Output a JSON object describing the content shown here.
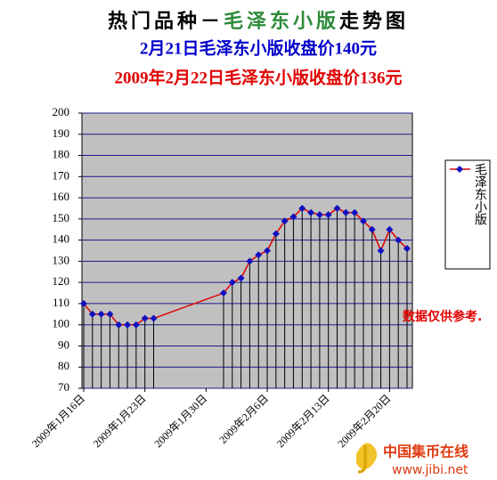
{
  "chart_data": {
    "type": "line",
    "title_parts": [
      {
        "text": "热门品种",
        "color": "#000000"
      },
      {
        "text": "－",
        "color": "#000000"
      },
      {
        "text": "毛泽东小版",
        "color": "#2e8b3a"
      },
      {
        "text": "走势图",
        "color": "#000000"
      }
    ],
    "subtitles": [
      {
        "text": "2月21日毛泽东小版收盘价140元",
        "color": "#0000cc"
      },
      {
        "text": "2009年2月22日毛泽东小版收盘价136元",
        "color": "#e00000"
      }
    ],
    "x": [
      "2009-01-16",
      "2009-01-17",
      "2009-01-18",
      "2009-01-19",
      "2009-01-20",
      "2009-01-21",
      "2009-01-22",
      "2009-01-23",
      "2009-01-24",
      "2009-02-01",
      "2009-02-02",
      "2009-02-03",
      "2009-02-04",
      "2009-02-05",
      "2009-02-06",
      "2009-02-07",
      "2009-02-08",
      "2009-02-09",
      "2009-02-10",
      "2009-02-11",
      "2009-02-12",
      "2009-02-13",
      "2009-02-14",
      "2009-02-15",
      "2009-02-16",
      "2009-02-17",
      "2009-02-18",
      "2009-02-19",
      "2009-02-20",
      "2009-02-21",
      "2009-02-22"
    ],
    "series": [
      {
        "name": "毛泽东小版",
        "color": "#e00000",
        "marker_color": "#1010c0",
        "values": [
          110,
          105,
          105,
          105,
          100,
          100,
          100,
          103,
          103,
          115,
          120,
          122,
          130,
          133,
          135,
          143,
          149,
          151,
          155,
          153,
          152,
          152,
          155,
          153,
          153,
          149,
          145,
          135,
          145,
          140,
          136
        ]
      }
    ],
    "xlim": [
      "2009-01-16",
      "2009-02-22"
    ],
    "xticks": [
      {
        "value": "2009-01-16",
        "label": "2009年1月16日"
      },
      {
        "value": "2009-01-23",
        "label": "2009年1月23日"
      },
      {
        "value": "2009-01-30",
        "label": "2009年1月30日"
      },
      {
        "value": "2009-02-06",
        "label": "2009年2月6日"
      },
      {
        "value": "2009-02-13",
        "label": "2009年2月13日"
      },
      {
        "value": "2009-02-20",
        "label": "2009年2月20日"
      }
    ],
    "ylim": [
      70,
      200
    ],
    "yticks": [
      70,
      80,
      90,
      100,
      110,
      120,
      130,
      140,
      150,
      160,
      170,
      180,
      190,
      200
    ],
    "grid": true,
    "grid_color": "#1a1a8c",
    "plot_background": "#c0c0c0",
    "drop_lines": true,
    "legend": "right",
    "note": "数据仅供参考.",
    "watermark": {
      "name": "中国集币在线",
      "url": "www.jibi.net"
    }
  }
}
